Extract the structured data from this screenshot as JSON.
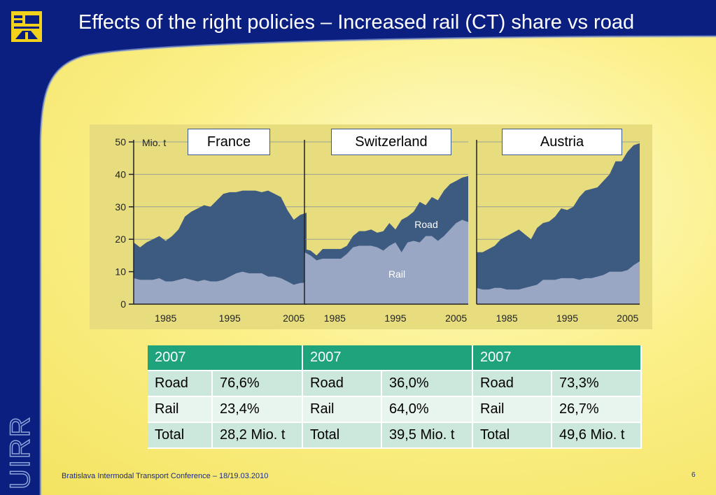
{
  "title": "Effects of the right policies – Increased rail (CT) share vs road",
  "brand_vertical": "UIRR",
  "footer": "Bratislava Intermodal Transport Conference – 18/19.03.2010",
  "page_number": "6",
  "colors": {
    "road": "#3d5a80",
    "rail": "#9aa7c4",
    "header_green": "#1fa37c",
    "slide_blue": "#0a1f80"
  },
  "chart_data": {
    "type": "area",
    "ylabel": "Mio. t",
    "ylim": [
      0,
      50
    ],
    "yticks": [
      0,
      10,
      20,
      30,
      40,
      50
    ],
    "xticks": [
      1985,
      1995,
      2005
    ],
    "xlim": [
      1980,
      2007
    ],
    "series_labels": {
      "road": "Road",
      "rail": "Rail"
    },
    "panels": [
      {
        "country": "France",
        "x": [
          1980,
          1981,
          1982,
          1983,
          1984,
          1985,
          1986,
          1987,
          1988,
          1989,
          1990,
          1991,
          1992,
          1993,
          1994,
          1995,
          1996,
          1997,
          1998,
          1999,
          2000,
          2001,
          2002,
          2003,
          2004,
          2005,
          2006,
          2007
        ],
        "total": [
          19,
          17.5,
          19,
          20,
          21,
          19.5,
          21,
          23,
          27,
          28.5,
          29.5,
          30.5,
          30,
          32,
          34,
          34.5,
          34.5,
          35,
          35,
          35,
          34.5,
          35,
          34,
          33,
          29,
          26,
          27.5,
          28.2
        ],
        "rail": [
          8,
          7.5,
          7.5,
          7.5,
          8,
          7,
          7,
          7.5,
          8,
          7.5,
          7,
          7.5,
          7,
          7,
          7.5,
          8.5,
          9.5,
          10,
          9.5,
          9.5,
          9.5,
          8.5,
          8.5,
          8,
          7,
          6,
          6.5,
          6.6
        ]
      },
      {
        "country": "Switzerland",
        "x": [
          1980,
          1981,
          1982,
          1983,
          1984,
          1985,
          1986,
          1987,
          1988,
          1989,
          1990,
          1991,
          1992,
          1993,
          1994,
          1995,
          1996,
          1997,
          1998,
          1999,
          2000,
          2001,
          2002,
          2003,
          2004,
          2005,
          2006,
          2007
        ],
        "total": [
          17,
          16.5,
          15,
          17,
          17,
          17,
          17,
          18,
          21,
          22.5,
          22.5,
          23,
          22,
          22.5,
          25,
          23,
          26,
          27,
          28.5,
          31.5,
          30.5,
          33,
          32,
          35,
          37,
          38,
          39,
          39.5
        ],
        "rail": [
          16,
          15,
          13.5,
          14,
          14,
          14,
          14,
          15.5,
          17.5,
          18,
          18,
          18,
          17.5,
          16.5,
          18,
          19,
          16,
          19,
          19.5,
          19,
          21,
          21,
          19.5,
          21,
          23,
          25,
          26,
          25.3
        ]
      },
      {
        "country": "Austria",
        "x": [
          1980,
          1981,
          1982,
          1983,
          1984,
          1985,
          1986,
          1987,
          1988,
          1989,
          1990,
          1991,
          1992,
          1993,
          1994,
          1995,
          1996,
          1997,
          1998,
          1999,
          2000,
          2001,
          2002,
          2003,
          2004,
          2005,
          2006,
          2007
        ],
        "total": [
          16,
          16,
          17,
          18,
          20,
          21,
          22,
          23,
          21.5,
          20,
          23.5,
          25,
          25.5,
          27,
          29.5,
          29,
          30,
          33,
          35,
          35.5,
          36,
          38,
          40,
          44,
          44,
          47,
          49,
          49.6
        ],
        "rail": [
          5,
          4.5,
          4.5,
          5,
          5,
          4.5,
          4.5,
          4.5,
          5,
          5.5,
          6,
          7.5,
          7.5,
          7.5,
          8,
          8,
          8,
          7.5,
          8,
          8,
          8.5,
          9,
          10,
          10,
          10,
          10.5,
          12,
          13.2
        ]
      }
    ]
  },
  "table": {
    "headers": [
      "2007",
      "2007",
      "2007"
    ],
    "rows": [
      [
        "Road",
        "76,6%",
        "Road",
        "36,0%",
        "Road",
        "73,3%"
      ],
      [
        "Rail",
        "23,4%",
        "Rail",
        "64,0%",
        "Rail",
        "26,7%"
      ],
      [
        "Total",
        "28,2 Mio. t",
        "Total",
        "39,5 Mio. t",
        "Total",
        "49,6 Mio. t"
      ]
    ]
  }
}
